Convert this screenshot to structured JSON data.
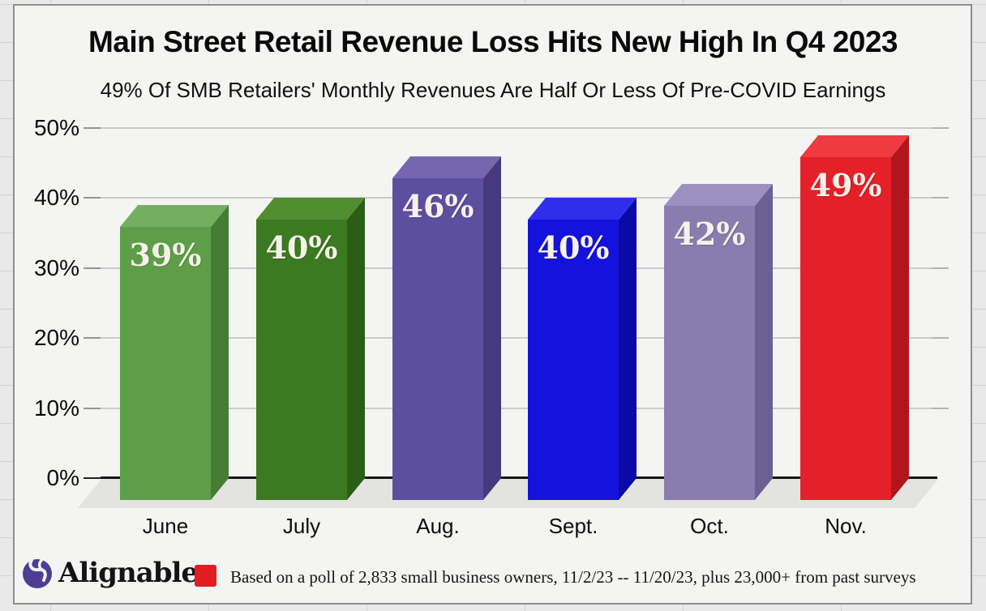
{
  "header": {
    "title": "Main Street Retail Revenue Loss Hits New High In Q4 2023",
    "subtitle": "49% Of SMB Retailers' Monthly Revenues Are Half Or Less Of Pre-COVID Earnings"
  },
  "chart_data": {
    "type": "bar",
    "style": "3d-column",
    "title": "Main Street Retail Revenue Loss Hits New High In Q4 2023",
    "subtitle": "49% Of SMB Retailers' Monthly Revenues Are Half Or Less Of Pre-COVID Earnings",
    "categories": [
      "June",
      "July",
      "Aug.",
      "Sept.",
      "Oct.",
      "Nov."
    ],
    "values": [
      39,
      40,
      46,
      40,
      42,
      49
    ],
    "data_labels": [
      "39%",
      "40%",
      "46%",
      "40%",
      "42%",
      "49%"
    ],
    "unit": "%",
    "xlabel": "",
    "ylabel": "",
    "y_axis": {
      "min": 0,
      "max": 50,
      "tick_step": 10,
      "tick_labels": [
        "0%",
        "10%",
        "20%",
        "30%",
        "40%",
        "50%"
      ]
    },
    "grid": true,
    "legend_position": "none",
    "value_label_color": "#f5f2e9",
    "bar_colors": [
      {
        "name": "green",
        "front": "#5e9e49",
        "top": "#74af60",
        "side": "#457d34"
      },
      {
        "name": "dark-green",
        "front": "#3b7a21",
        "top": "#518d31",
        "side": "#2a5e16"
      },
      {
        "name": "purple",
        "front": "#5d4f9f",
        "top": "#7467b0",
        "side": "#463a7c"
      },
      {
        "name": "blue",
        "front": "#1512dd",
        "top": "#302eec",
        "side": "#0c0aa6"
      },
      {
        "name": "lavender",
        "front": "#897daf",
        "top": "#9b91c0",
        "side": "#6a6092"
      },
      {
        "name": "red",
        "front": "#e62028",
        "top": "#ee3a40",
        "side": "#b2151c"
      }
    ]
  },
  "footer": {
    "brand": "Alignable",
    "brand_color": "#4e3d94",
    "legend_color": "#e11d24",
    "note": "Based on a poll of 2,833 small business owners, 11/2/23 -- 11/20/23, plus 23,000+ from past surveys"
  }
}
